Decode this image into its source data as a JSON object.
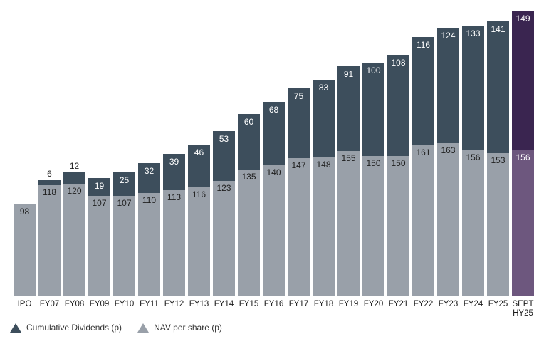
{
  "chart_data": {
    "type": "bar",
    "stacked": true,
    "title": "",
    "xlabel": "",
    "ylabel": "",
    "grid": false,
    "value_labels": true,
    "legend_position": "bottom-left",
    "categories": [
      "IPO",
      "FY07",
      "FY08",
      "FY09",
      "FY10",
      "FY11",
      "FY12",
      "FY13",
      "FY14",
      "FY15",
      "FY16",
      "FY17",
      "FY18",
      "FY19",
      "FY20",
      "FY21",
      "FY22",
      "FY23",
      "FY24",
      "FY25",
      "SEPT\nHY25"
    ],
    "series": [
      {
        "name": "NAV per share (p)",
        "values": [
          98,
          118,
          120,
          107,
          107,
          110,
          113,
          116,
          123,
          135,
          140,
          147,
          148,
          155,
          150,
          150,
          161,
          163,
          156,
          153,
          156
        ],
        "color": "#99a0a9",
        "highlight_color": "#6d577e"
      },
      {
        "name": "Cumulative Dividends (p)",
        "values": [
          0,
          6,
          12,
          19,
          25,
          32,
          39,
          46,
          53,
          60,
          68,
          75,
          83,
          91,
          100,
          108,
          116,
          124,
          133,
          141,
          149
        ],
        "color": "#3d4e5c",
        "highlight_color": "#3a2550"
      }
    ],
    "highlight_index": 20,
    "highlight_category": "SEPT HY25"
  },
  "legend": {
    "items": [
      {
        "label": "Cumulative Dividends (p)",
        "color": "#3d4e5c"
      },
      {
        "label": "NAV per share (p)",
        "color": "#99a0a9"
      }
    ]
  }
}
